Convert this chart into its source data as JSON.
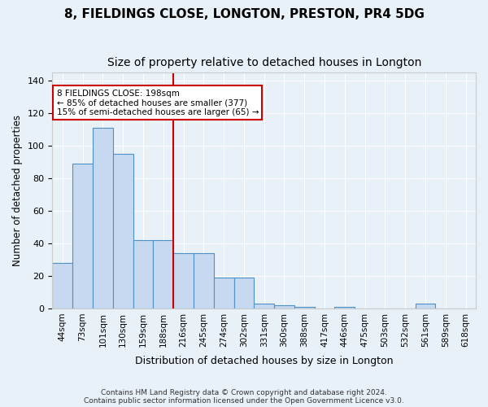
{
  "title": "8, FIELDINGS CLOSE, LONGTON, PRESTON, PR4 5DG",
  "subtitle": "Size of property relative to detached houses in Longton",
  "xlabel": "Distribution of detached houses by size in Longton",
  "ylabel": "Number of detached properties",
  "bin_labels": [
    "44sqm",
    "73sqm",
    "101sqm",
    "130sqm",
    "159sqm",
    "188sqm",
    "216sqm",
    "245sqm",
    "274sqm",
    "302sqm",
    "331sqm",
    "360sqm",
    "388sqm",
    "417sqm",
    "446sqm",
    "475sqm",
    "503sqm",
    "532sqm",
    "561sqm",
    "589sqm",
    "618sqm"
  ],
  "bar_values": [
    28,
    89,
    111,
    95,
    42,
    42,
    34,
    34,
    19,
    19,
    3,
    2,
    1,
    0,
    1,
    0,
    0,
    0,
    3,
    0,
    0
  ],
  "bar_color": "#c6d9f0",
  "bar_edge_color": "#4e90c8",
  "vline_x": 5.5,
  "vline_color": "#cc0000",
  "annotation_line1": "8 FIELDINGS CLOSE: 198sqm",
  "annotation_line2": "← 85% of detached houses are smaller (377)",
  "annotation_line3": "15% of semi-detached houses are larger (65) →",
  "annotation_box_color": "#cc0000",
  "ylim": [
    0,
    145
  ],
  "yticks": [
    0,
    20,
    40,
    60,
    80,
    100,
    120,
    140
  ],
  "footer1": "Contains HM Land Registry data © Crown copyright and database right 2024.",
  "footer2": "Contains public sector information licensed under the Open Government Licence v3.0.",
  "background_color": "#e8f0f8",
  "plot_background_color": "#e8f0f8",
  "grid_color": "#ffffff",
  "title_fontsize": 11,
  "subtitle_fontsize": 10
}
